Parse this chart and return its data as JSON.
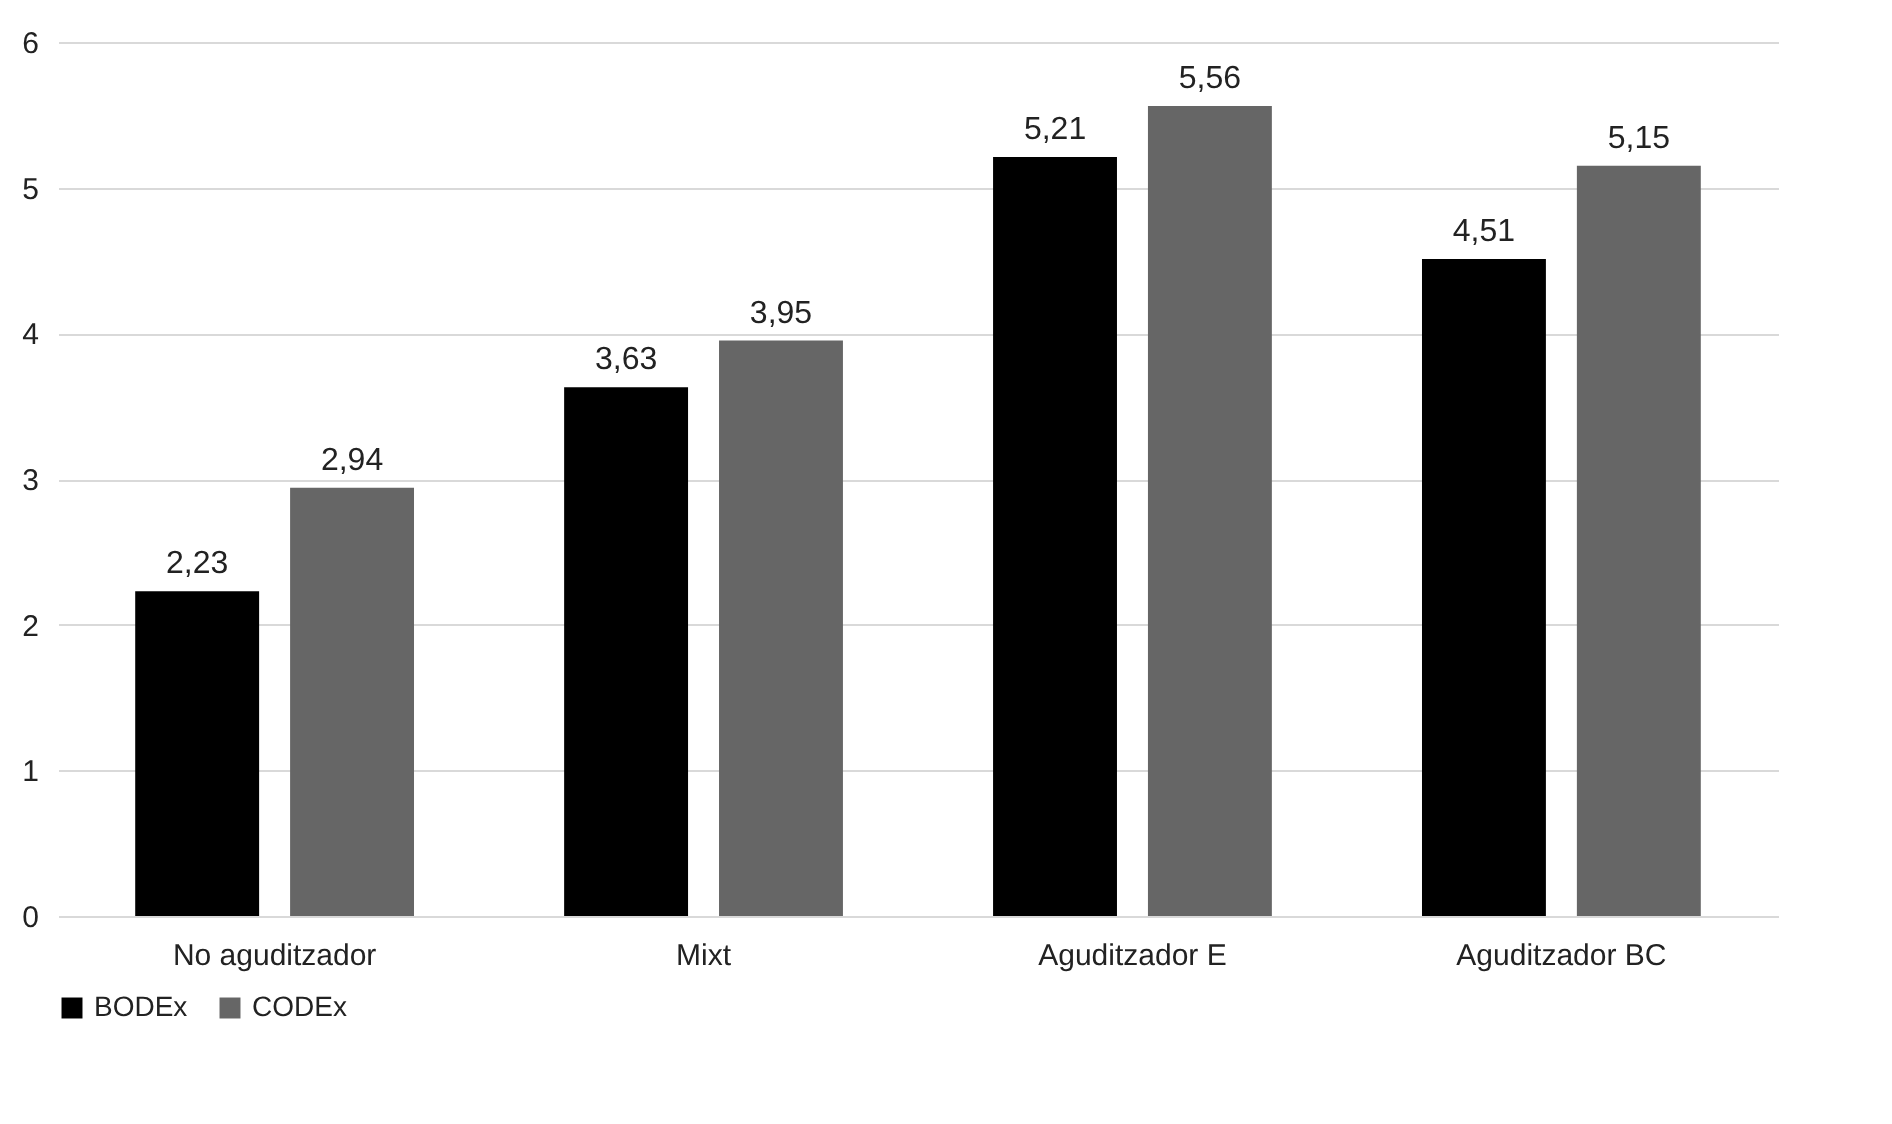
{
  "chart_data": {
    "type": "bar",
    "categories": [
      "No aguditzador",
      "Mixt",
      "Aguditzador E",
      "Aguditzador BC"
    ],
    "series": [
      {
        "name": "BODEx",
        "color": "#000000",
        "values": [
          2.23,
          3.63,
          5.21,
          4.51
        ],
        "value_labels": [
          "2,23",
          "3,63",
          "5,21",
          "4,51"
        ]
      },
      {
        "name": "CODEx",
        "color": "#666666",
        "values": [
          2.94,
          3.95,
          5.56,
          5.15
        ],
        "value_labels": [
          "2,94",
          "3,95",
          "5,56",
          "5,15"
        ]
      }
    ],
    "ylim": [
      0,
      6
    ],
    "yticks": [
      0,
      1,
      2,
      3,
      4,
      5,
      6
    ],
    "grid": "y",
    "legend": "bottom"
  }
}
